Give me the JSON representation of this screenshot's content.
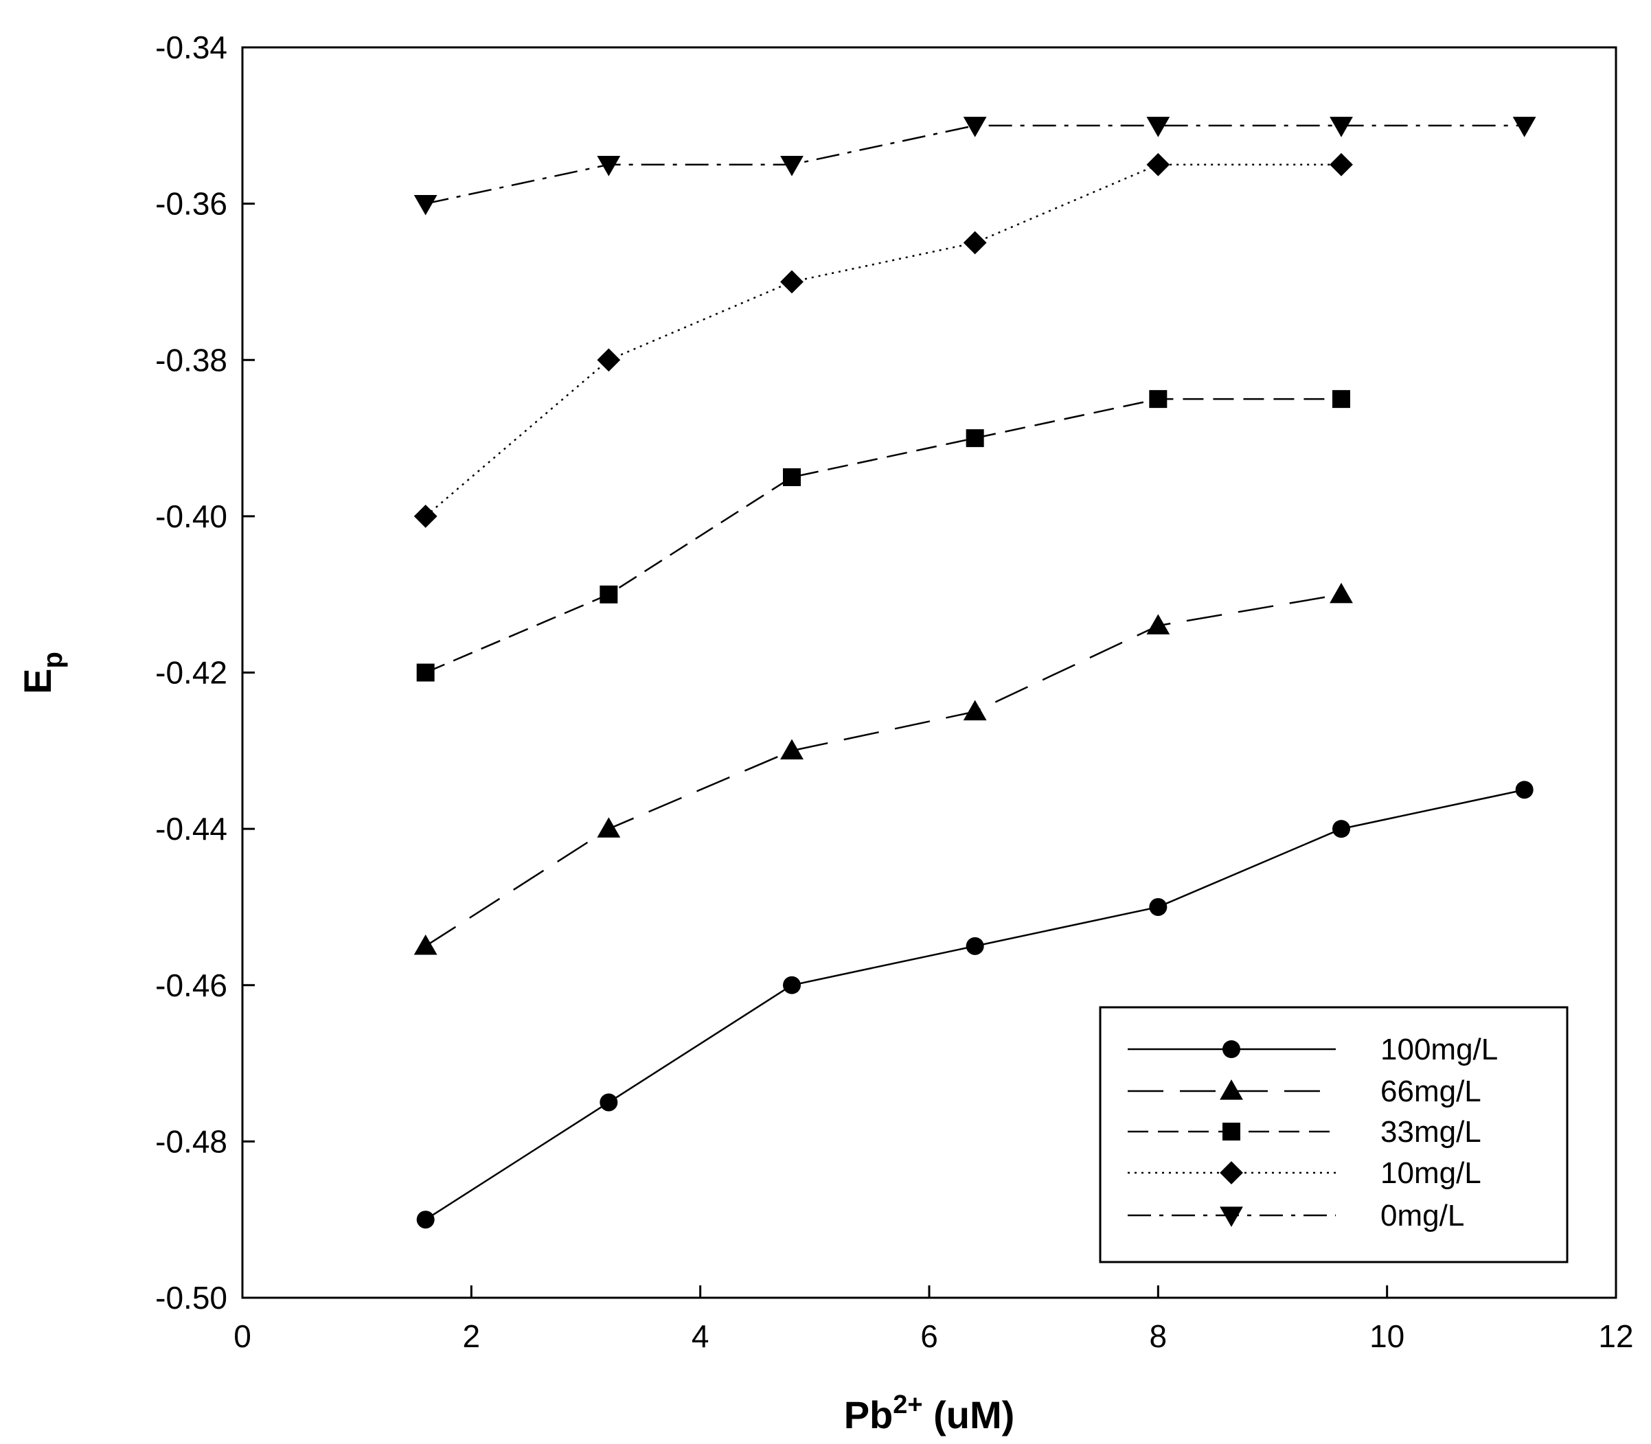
{
  "chart_data": {
    "type": "line",
    "title": "",
    "xlabel": {
      "base": "Pb",
      "superscript": "2+",
      "suffix": " (uM)"
    },
    "ylabel": {
      "base": "E",
      "subscript": "p"
    },
    "xlim": [
      0,
      12
    ],
    "ylim": [
      -0.5,
      -0.34
    ],
    "xticks": [
      0,
      2,
      4,
      6,
      8,
      10,
      12
    ],
    "xtick_labels": [
      "0",
      "2",
      "4",
      "6",
      "8",
      "10",
      "12"
    ],
    "yticks": [
      -0.5,
      -0.48,
      -0.46,
      -0.44,
      -0.42,
      -0.4,
      -0.38,
      -0.36,
      -0.34
    ],
    "ytick_labels": [
      "-0.50",
      "-0.48",
      "-0.46",
      "-0.44",
      "-0.42",
      "-0.40",
      "-0.38",
      "-0.36",
      "-0.34"
    ],
    "grid": false,
    "legend_position": "bottom-right",
    "series": [
      {
        "name": "100mg/L",
        "marker": "circle",
        "line_style": "solid",
        "x": [
          1.6,
          3.2,
          4.8,
          6.4,
          8.0,
          9.6,
          11.2
        ],
        "y": [
          -0.49,
          -0.475,
          -0.46,
          -0.455,
          -0.45,
          -0.44,
          -0.435
        ]
      },
      {
        "name": "66mg/L",
        "marker": "triangle-up",
        "line_style": "long-dash",
        "x": [
          1.6,
          3.2,
          4.8,
          6.4,
          8.0,
          9.6
        ],
        "y": [
          -0.455,
          -0.44,
          -0.43,
          -0.425,
          -0.414,
          -0.41
        ]
      },
      {
        "name": "33mg/L",
        "marker": "square",
        "line_style": "medium-dash",
        "x": [
          1.6,
          3.2,
          4.8,
          6.4,
          8.0,
          9.6
        ],
        "y": [
          -0.42,
          -0.41,
          -0.395,
          -0.39,
          -0.385,
          -0.385
        ]
      },
      {
        "name": "10mg/L",
        "marker": "diamond",
        "line_style": "dotted",
        "x": [
          1.6,
          3.2,
          4.8,
          6.4,
          8.0,
          9.6
        ],
        "y": [
          -0.4,
          -0.38,
          -0.37,
          -0.365,
          -0.355,
          -0.355
        ]
      },
      {
        "name": "0mg/L",
        "marker": "triangle-down",
        "line_style": "dash-dot",
        "x": [
          1.6,
          3.2,
          4.8,
          6.4,
          8.0,
          9.6,
          11.2
        ],
        "y": [
          -0.36,
          -0.355,
          -0.355,
          -0.35,
          -0.35,
          -0.35,
          -0.35
        ]
      }
    ]
  }
}
